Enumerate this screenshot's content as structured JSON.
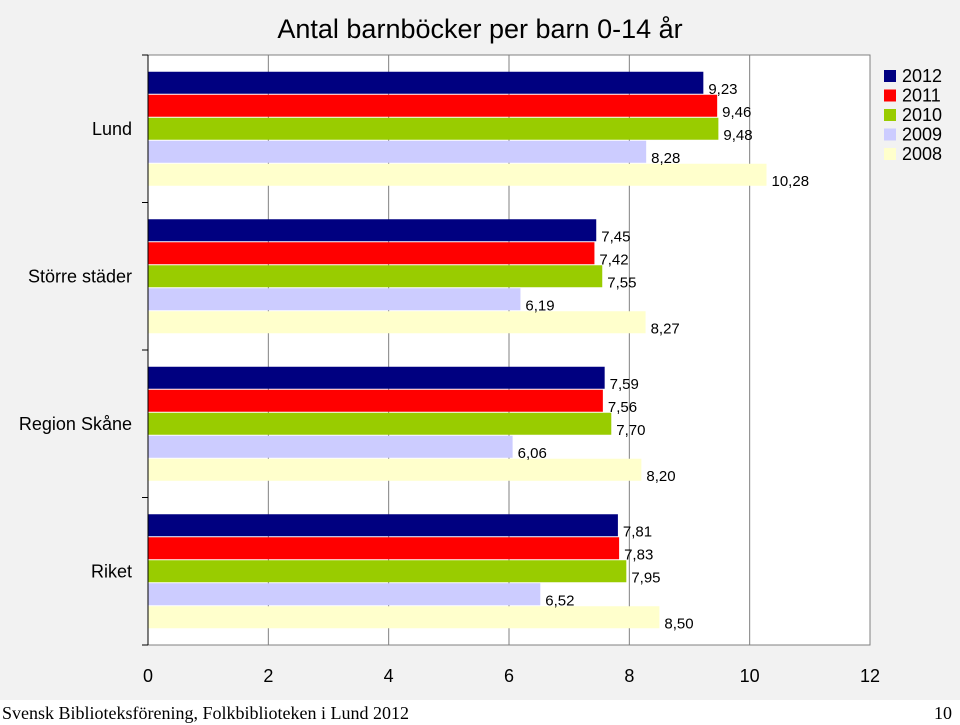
{
  "chart_data": {
    "type": "bar",
    "orientation": "horizontal",
    "title": "Antal barnböcker per barn 0-14 år",
    "categories": [
      "Lund",
      "Större städer",
      "Region Skåne",
      "Riket"
    ],
    "series": [
      {
        "name": "2012",
        "color": "#000080",
        "values": [
          9.23,
          7.45,
          7.59,
          7.81
        ],
        "labels": [
          "9,23",
          "7,45",
          "7,59",
          "7,81"
        ]
      },
      {
        "name": "2011",
        "color": "#ff0000",
        "values": [
          9.46,
          7.42,
          7.56,
          7.83
        ],
        "labels": [
          "9,46",
          "7,42",
          "7,56",
          "7,83"
        ]
      },
      {
        "name": "2010",
        "color": "#99cc00",
        "values": [
          9.48,
          7.55,
          7.7,
          7.95
        ],
        "labels": [
          "9,48",
          "7,55",
          "7,70",
          "7,95"
        ]
      },
      {
        "name": "2009",
        "color": "#ccccff",
        "values": [
          8.28,
          6.19,
          6.06,
          6.52
        ],
        "labels": [
          "8,28",
          "6,19",
          "6,06",
          "6,52"
        ]
      },
      {
        "name": "2008",
        "color": "#ffffcc",
        "values": [
          10.28,
          8.27,
          8.2,
          8.5
        ],
        "labels": [
          "10,28",
          "8,27",
          "8,20",
          "8,50"
        ]
      }
    ],
    "xlim": [
      0,
      12
    ],
    "xticks": [
      "0",
      "2",
      "4",
      "6",
      "8",
      "10",
      "12"
    ],
    "grid": "vertical",
    "legend": "top-right"
  },
  "footer": {
    "source": "Svensk Biblioteksförening, Folkbiblioteken i Lund 2012",
    "page_number": "10"
  }
}
